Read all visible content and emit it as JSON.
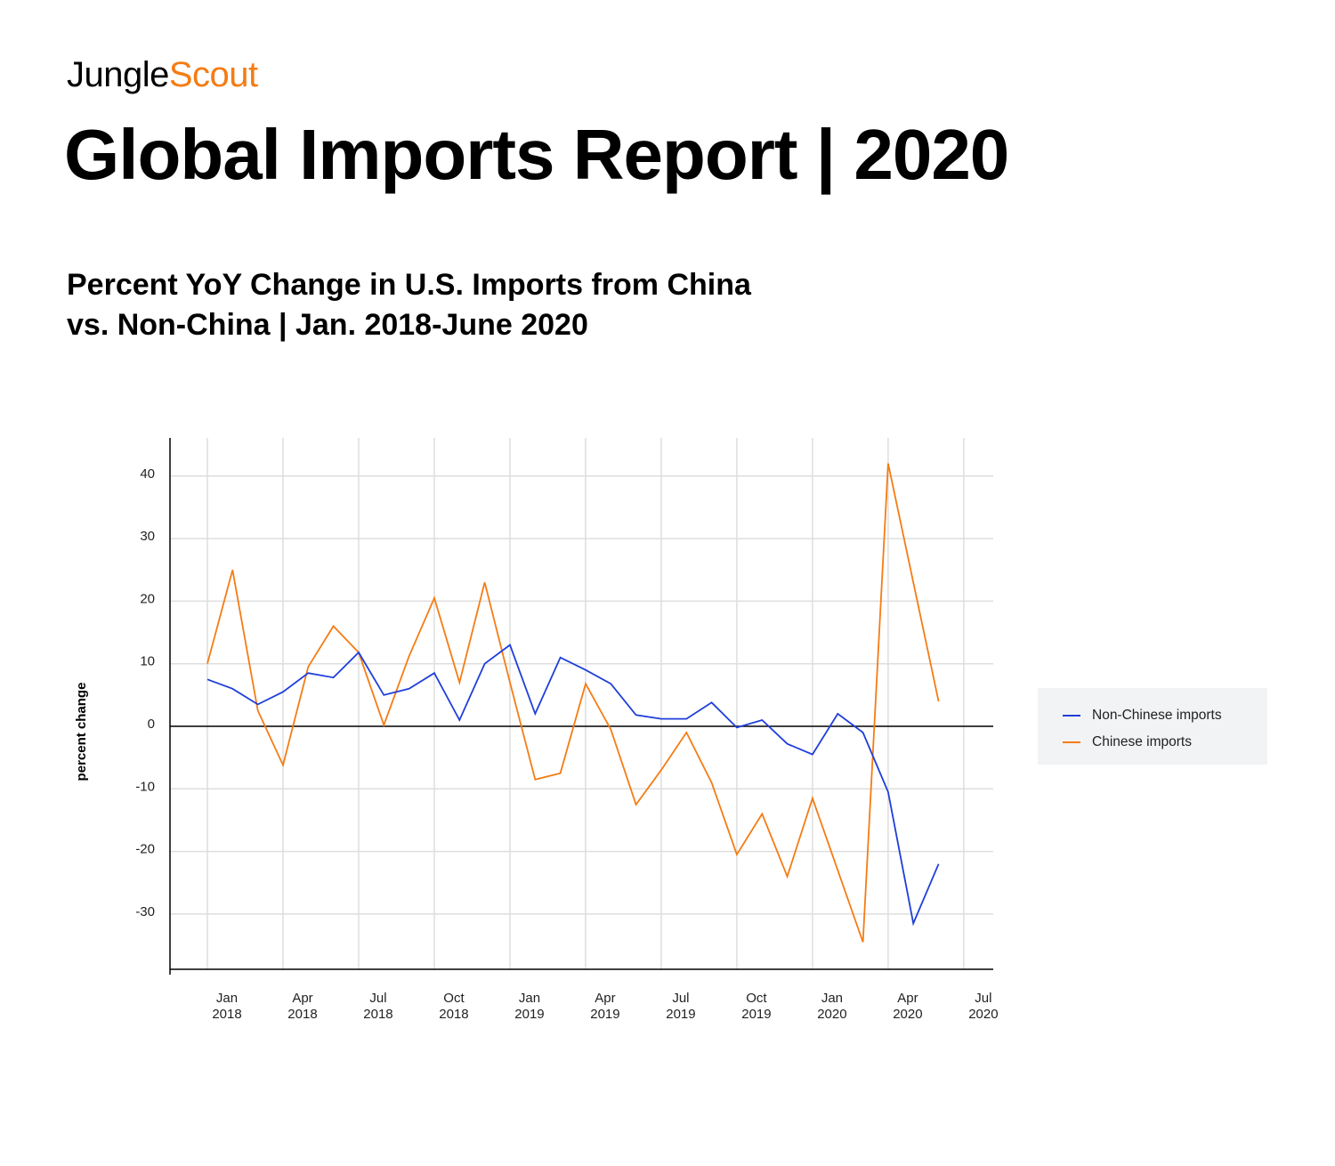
{
  "brand": {
    "part1": "Jungle",
    "part2": "Scout",
    "accent": "#f57c14"
  },
  "report_title": "Global Imports Report | 2020",
  "chart_title_lines": [
    "Percent YoY Change in U.S. Imports from China",
    "vs. Non-China | Jan. 2018-June 2020"
  ],
  "chart_data": {
    "type": "line",
    "ylabel": "percent change",
    "ylim": [
      -39,
      46
    ],
    "yticks": [
      40,
      30,
      20,
      10,
      0,
      -10,
      -20,
      -30
    ],
    "x_tick_labels": [
      [
        "Jan",
        "2018"
      ],
      [
        "Apr",
        "2018"
      ],
      [
        "Jul",
        "2018"
      ],
      [
        "Oct",
        "2018"
      ],
      [
        "Jan",
        "2019"
      ],
      [
        "Apr",
        "2019"
      ],
      [
        "Jul",
        "2019"
      ],
      [
        "Oct",
        "2019"
      ],
      [
        "Jan",
        "2020"
      ],
      [
        "Apr",
        "2020"
      ],
      [
        "Jul",
        "2020"
      ]
    ],
    "x": [
      "2018-01",
      "2018-02",
      "2018-03",
      "2018-04",
      "2018-05",
      "2018-06",
      "2018-07",
      "2018-08",
      "2018-09",
      "2018-10",
      "2018-11",
      "2018-12",
      "2019-01",
      "2019-02",
      "2019-03",
      "2019-04",
      "2019-05",
      "2019-06",
      "2019-07",
      "2019-08",
      "2019-09",
      "2019-10",
      "2019-11",
      "2019-12",
      "2020-01",
      "2020-02",
      "2020-03",
      "2020-04",
      "2020-05",
      "2020-06"
    ],
    "series": [
      {
        "name": "Non-Chinese imports",
        "color": "#1f3fd9",
        "values": [
          7.5,
          6.0,
          3.5,
          5.5,
          8.5,
          7.8,
          11.8,
          5.0,
          6.0,
          8.5,
          1.0,
          10.0,
          13.0,
          2.0,
          11.0,
          9.0,
          6.8,
          1.8,
          1.2,
          1.2,
          3.8,
          -0.2,
          1.0,
          -2.8,
          -4.5,
          2.0,
          -1.0,
          -10.5,
          -31.5,
          -22.0
        ]
      },
      {
        "name": "Chinese imports",
        "color": "#f57c14",
        "values": [
          10.0,
          25.0,
          2.5,
          -6.2,
          9.5,
          16.0,
          11.8,
          0.2,
          11.2,
          20.5,
          7.0,
          23.0,
          7.0,
          -8.5,
          -7.5,
          6.8,
          -0.5,
          -12.5,
          -7.0,
          -1.0,
          -9.0,
          -20.5,
          -14.0,
          -24.0,
          -11.5,
          -23.0,
          -34.5,
          42.0,
          23.0,
          4.0
        ]
      }
    ],
    "legend_position": "right",
    "grid": true
  }
}
